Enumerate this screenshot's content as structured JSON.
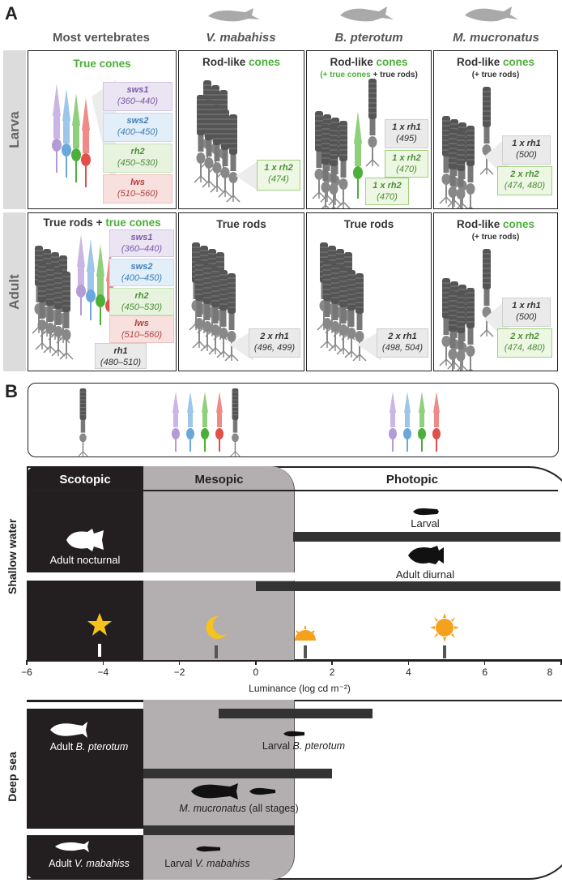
{
  "panelA": {
    "letter": "A",
    "columns": [
      "Most vertebrates",
      "V. mabahiss",
      "B. pterotum",
      "M. mucronatus"
    ],
    "rows": [
      "Larva",
      "Adult"
    ],
    "cells": {
      "larva_most": {
        "title": "True cones",
        "opsins": [
          {
            "name": "sws1",
            "range": "(360–440)"
          },
          {
            "name": "sws2",
            "range": "(400–450)"
          },
          {
            "name": "rh2",
            "range": "(450–530)"
          },
          {
            "name": "lws",
            "range": "(510–560)"
          }
        ]
      },
      "larva_vm": {
        "title_a": "Rod-like ",
        "title_b": "cones",
        "opsin_a": "1 x rh2",
        "opsin_b": "(474)"
      },
      "larva_bp": {
        "title_a": "Rod-like ",
        "title_b": "cones",
        "sub_a": "(+ ",
        "sub_b": "true cones",
        "sub_c": " + true rods)",
        "opsins": [
          {
            "name": "1 x rh1",
            "range": "(495)"
          },
          {
            "name": "1 x rh2",
            "range": "(470)"
          },
          {
            "name": "1 x rh2",
            "range": "(470)"
          }
        ]
      },
      "larva_mm": {
        "title_a": "Rod-like ",
        "title_b": "cones",
        "sub": "(+ true rods)",
        "opsins": [
          {
            "name": "1 x rh1",
            "range": "(500)"
          },
          {
            "name": "2 x rh2",
            "range": "(474, 480)"
          }
        ]
      },
      "adult_most": {
        "title_a": "True rods + ",
        "title_b": "true cones",
        "opsins": [
          {
            "name": "sws1",
            "range": "(360–440)"
          },
          {
            "name": "sws2",
            "range": "(400–450)"
          },
          {
            "name": "rh2",
            "range": "(450–530)"
          },
          {
            "name": "lws",
            "range": "(510–560)"
          },
          {
            "name": "rh1",
            "range": "(480–510)"
          }
        ]
      },
      "adult_vm": {
        "title": "True rods",
        "opsin_a": "2 x rh1",
        "opsin_b": "(496, 499)"
      },
      "adult_bp": {
        "title": "True rods",
        "opsin_a": "2 x rh1",
        "opsin_b": "(498, 504)"
      },
      "adult_mm": {
        "title_a": "Rod-like ",
        "title_b": "cones",
        "sub": "(+ true rods)",
        "opsins": [
          {
            "name": "1 x rh1",
            "range": "(500)"
          },
          {
            "name": "2 x rh2",
            "range": "(474, 480)"
          }
        ]
      }
    }
  },
  "panelB": {
    "letter": "B",
    "zones": [
      "Scotopic",
      "Mesopic",
      "Photopic"
    ],
    "shallow_label": "Shallow water",
    "deep_label": "Deep sea",
    "shallow_items": {
      "larval": "Larval",
      "adult_diurnal": "Adult diurnal",
      "adult_nocturnal": "Adult nocturnal"
    },
    "axis": {
      "label": "Luminance (log cd m⁻²)",
      "ticks": [
        "−6",
        "−4",
        "−2",
        "0",
        "2",
        "4",
        "6",
        "8"
      ]
    },
    "deep_items": {
      "adult_bp_a": "Adult ",
      "adult_bp_b": "B. pterotum",
      "larval_bp_a": "Larval ",
      "larval_bp_b": "B. pterotum",
      "mm_a": "M. mucronatus",
      "mm_b": " (all stages)",
      "adult_vm_a": "Adult ",
      "adult_vm_b": "V. mabahiss",
      "larval_vm_a": "Larval ",
      "larval_vm_b": "V. mabahiss"
    },
    "colors": {
      "scotopic": "#231f20",
      "mesopic": "#b3aeb0",
      "bar": "#333333",
      "cone_green": "#4caf3a"
    }
  }
}
